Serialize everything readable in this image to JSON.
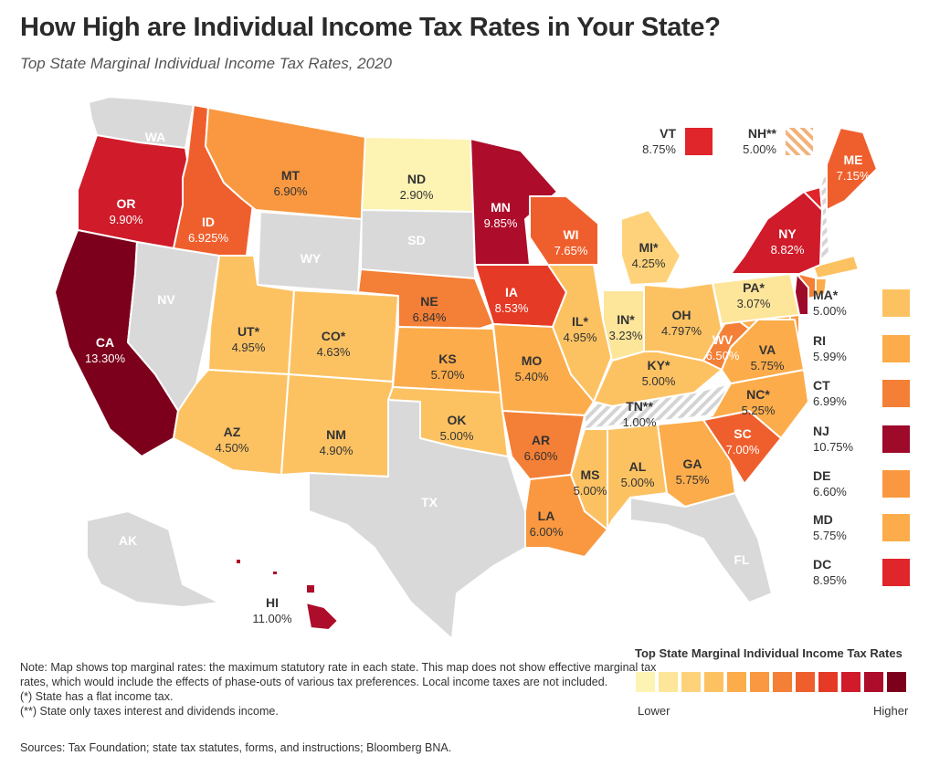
{
  "header": {
    "title": "How High are Individual Income Tax Rates in Your State?",
    "subtitle": "Top State Marginal Individual Income Tax Rates, 2020"
  },
  "palette": {
    "c1": "#fdf3b3",
    "c2": "#fde59a",
    "c3": "#fdd27a",
    "c4": "#fcc262",
    "c5": "#fcac4b",
    "c6": "#f99840",
    "c7": "#f47f36",
    "c8": "#ef5f2d",
    "c9": "#e53a25",
    "c10": "#cf1b2a",
    "c11": "#ad0c2a",
    "c12": "#7c001c",
    "none": "#d9d9d9",
    "hatch": "#f2b27a"
  },
  "states": [
    {
      "code": "WA",
      "rate": "",
      "color": "none"
    },
    {
      "code": "OR",
      "rate": "9.90%",
      "color": "c10"
    },
    {
      "code": "CA",
      "rate": "13.30%",
      "color": "c12"
    },
    {
      "code": "NV",
      "rate": "",
      "color": "none"
    },
    {
      "code": "ID",
      "rate": "6.925%",
      "color": "c8"
    },
    {
      "code": "MT",
      "rate": "6.90%",
      "color": "c6"
    },
    {
      "code": "WY",
      "rate": "",
      "color": "none"
    },
    {
      "code": "UT*",
      "rate": "4.95%",
      "color": "c4"
    },
    {
      "code": "CO*",
      "rate": "4.63%",
      "color": "c4"
    },
    {
      "code": "AZ",
      "rate": "4.50%",
      "color": "c4"
    },
    {
      "code": "NM",
      "rate": "4.90%",
      "color": "c4"
    },
    {
      "code": "ND",
      "rate": "2.90%",
      "color": "c1"
    },
    {
      "code": "SD",
      "rate": "",
      "color": "none"
    },
    {
      "code": "NE",
      "rate": "6.84%",
      "color": "c7"
    },
    {
      "code": "KS",
      "rate": "5.70%",
      "color": "c5"
    },
    {
      "code": "OK",
      "rate": "5.00%",
      "color": "c4"
    },
    {
      "code": "TX",
      "rate": "",
      "color": "none"
    },
    {
      "code": "MN",
      "rate": "9.85%",
      "color": "c11"
    },
    {
      "code": "IA",
      "rate": "8.53%",
      "color": "c9"
    },
    {
      "code": "MO",
      "rate": "5.40%",
      "color": "c5"
    },
    {
      "code": "AR",
      "rate": "6.60%",
      "color": "c7"
    },
    {
      "code": "LA",
      "rate": "6.00%",
      "color": "c6"
    },
    {
      "code": "WI",
      "rate": "7.65%",
      "color": "c8"
    },
    {
      "code": "IL*",
      "rate": "4.95%",
      "color": "c4"
    },
    {
      "code": "MI*",
      "rate": "4.25%",
      "color": "c3"
    },
    {
      "code": "IN*",
      "rate": "3.23%",
      "color": "c2"
    },
    {
      "code": "OH",
      "rate": "4.797%",
      "color": "c4"
    },
    {
      "code": "KY*",
      "rate": "5.00%",
      "color": "c4"
    },
    {
      "code": "TN**",
      "rate": "1.00%",
      "color": "hatch"
    },
    {
      "code": "MS",
      "rate": "5.00%",
      "color": "c4"
    },
    {
      "code": "AL",
      "rate": "5.00%",
      "color": "c4"
    },
    {
      "code": "GA",
      "rate": "5.75%",
      "color": "c5"
    },
    {
      "code": "FL",
      "rate": "",
      "color": "none"
    },
    {
      "code": "SC",
      "rate": "7.00%",
      "color": "c8"
    },
    {
      "code": "NC*",
      "rate": "5.25%",
      "color": "c5"
    },
    {
      "code": "VA",
      "rate": "5.75%",
      "color": "c5"
    },
    {
      "code": "WV",
      "rate": "6.50%",
      "color": "c7"
    },
    {
      "code": "PA*",
      "rate": "3.07%",
      "color": "c2"
    },
    {
      "code": "NY",
      "rate": "8.82%",
      "color": "c10"
    },
    {
      "code": "ME",
      "rate": "7.15%",
      "color": "c8"
    },
    {
      "code": "AK",
      "rate": "",
      "color": "none"
    },
    {
      "code": "HI",
      "rate": "11.00%",
      "color": "c11"
    }
  ],
  "callouts": {
    "top": [
      {
        "code": "VT",
        "rate": "8.75%",
        "color": "#e0252b",
        "hatched": false
      },
      {
        "code": "NH**",
        "rate": "5.00%",
        "color": "#f2b27a",
        "hatched": true
      }
    ],
    "side": [
      {
        "code": "MA*",
        "rate": "5.00%",
        "color": "#fcc262"
      },
      {
        "code": "RI",
        "rate": "5.99%",
        "color": "#fcac4b"
      },
      {
        "code": "CT",
        "rate": "6.99%",
        "color": "#f47f36"
      },
      {
        "code": "NJ",
        "rate": "10.75%",
        "color": "#9d0a2a"
      },
      {
        "code": "DE",
        "rate": "6.60%",
        "color": "#f99840"
      },
      {
        "code": "MD",
        "rate": "5.75%",
        "color": "#fcac4b"
      },
      {
        "code": "DC",
        "rate": "8.95%",
        "color": "#e0252b"
      }
    ]
  },
  "legend": {
    "title": "Top State Marginal Individual Income Tax Rates",
    "low": "Lower",
    "high": "Higher",
    "colors": [
      "#fdf3b3",
      "#fde59a",
      "#fdd27a",
      "#fcc262",
      "#fcac4b",
      "#f99840",
      "#f47f36",
      "#ef5f2d",
      "#e53a25",
      "#cf1b2a",
      "#ad0c2a",
      "#7c001c"
    ]
  },
  "footnote": {
    "note": "Note: Map shows top marginal rates: the maximum statutory rate in each state. This map does not show effective marginal tax rates, which would include the effects of phase-outs of various tax preferences. Local income taxes are not included.",
    "flat": "(*) State has a flat income tax.",
    "interest": "(**) State only taxes interest and dividends income.",
    "sources": "Sources: Tax Foundation; state tax statutes, forms, and instructions; Bloomberg BNA."
  }
}
